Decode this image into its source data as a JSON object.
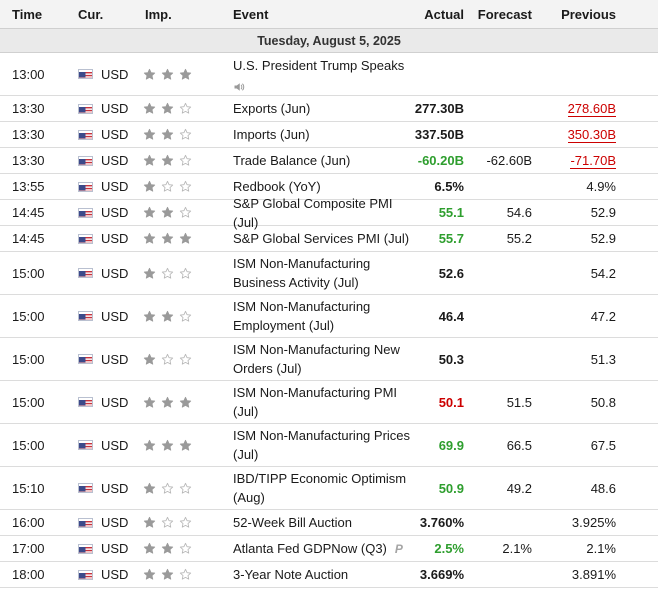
{
  "columns": {
    "time": "Time",
    "currency": "Cur.",
    "importance": "Imp.",
    "event": "Event",
    "actual": "Actual",
    "forecast": "Forecast",
    "previous": "Previous"
  },
  "date_label": "Tuesday, August 5, 2025",
  "colors": {
    "positive": "#2e9e2e",
    "negative": "#cc0000",
    "star_filled": "#9a9a9a",
    "star_empty": "#ffffff"
  },
  "events": [
    {
      "time": "13:00",
      "currency": "USD",
      "importance": 3,
      "event": "U.S. President Trump Speaks",
      "speech_icon": "speaker-icon",
      "actual": "",
      "actual_color": "neutral",
      "forecast": "",
      "previous": "",
      "previous_style": "normal"
    },
    {
      "time": "13:30",
      "currency": "USD",
      "importance": 2,
      "event": "Exports (Jun)",
      "actual": "277.30B",
      "actual_color": "neutral",
      "forecast": "",
      "previous": "278.60B",
      "previous_style": "revised"
    },
    {
      "time": "13:30",
      "currency": "USD",
      "importance": 2,
      "event": "Imports (Jun)",
      "actual": "337.50B",
      "actual_color": "neutral",
      "forecast": "",
      "previous": "350.30B",
      "previous_style": "revised"
    },
    {
      "time": "13:30",
      "currency": "USD",
      "importance": 2,
      "event": "Trade Balance (Jun)",
      "actual": "-60.20B",
      "actual_color": "positive",
      "forecast": "-62.60B",
      "previous": "-71.70B",
      "previous_style": "revised"
    },
    {
      "time": "13:55",
      "currency": "USD",
      "importance": 1,
      "event": "Redbook (YoY)",
      "actual": "6.5%",
      "actual_color": "neutral",
      "forecast": "",
      "previous": "4.9%",
      "previous_style": "normal"
    },
    {
      "time": "14:45",
      "currency": "USD",
      "importance": 2,
      "event": "S&P Global Composite PMI (Jul)",
      "actual": "55.1",
      "actual_color": "positive",
      "forecast": "54.6",
      "previous": "52.9",
      "previous_style": "normal"
    },
    {
      "time": "14:45",
      "currency": "USD",
      "importance": 3,
      "event": "S&P Global Services PMI (Jul)",
      "actual": "55.7",
      "actual_color": "positive",
      "forecast": "55.2",
      "previous": "52.9",
      "previous_style": "normal"
    },
    {
      "time": "15:00",
      "currency": "USD",
      "importance": 1,
      "event_lines": [
        "ISM Non-Manufacturing",
        "Business Activity (Jul)"
      ],
      "actual": "52.6",
      "actual_color": "neutral",
      "forecast": "",
      "previous": "54.2",
      "previous_style": "normal"
    },
    {
      "time": "15:00",
      "currency": "USD",
      "importance": 2,
      "event_lines": [
        "ISM Non-Manufacturing",
        "Employment (Jul)"
      ],
      "actual": "46.4",
      "actual_color": "neutral",
      "forecast": "",
      "previous": "47.2",
      "previous_style": "normal"
    },
    {
      "time": "15:00",
      "currency": "USD",
      "importance": 1,
      "event_lines": [
        "ISM Non-Manufacturing New",
        "Orders (Jul)"
      ],
      "actual": "50.3",
      "actual_color": "neutral",
      "forecast": "",
      "previous": "51.3",
      "previous_style": "normal"
    },
    {
      "time": "15:00",
      "currency": "USD",
      "importance": 3,
      "event_lines": [
        "ISM Non-Manufacturing PMI",
        "(Jul)"
      ],
      "actual": "50.1",
      "actual_color": "negative",
      "forecast": "51.5",
      "previous": "50.8",
      "previous_style": "normal"
    },
    {
      "time": "15:00",
      "currency": "USD",
      "importance": 3,
      "event_lines": [
        "ISM Non-Manufacturing Prices",
        "(Jul)"
      ],
      "actual": "69.9",
      "actual_color": "positive",
      "forecast": "66.5",
      "previous": "67.5",
      "previous_style": "normal"
    },
    {
      "time": "15:10",
      "currency": "USD",
      "importance": 1,
      "event_lines": [
        "IBD/TIPP Economic Optimism",
        "(Aug)"
      ],
      "actual": "50.9",
      "actual_color": "positive",
      "forecast": "49.2",
      "previous": "48.6",
      "previous_style": "normal"
    },
    {
      "time": "16:00",
      "currency": "USD",
      "importance": 1,
      "event": "52-Week Bill Auction",
      "actual": "3.760%",
      "actual_color": "neutral",
      "forecast": "",
      "previous": "3.925%",
      "previous_style": "normal"
    },
    {
      "time": "17:00",
      "currency": "USD",
      "importance": 2,
      "event": "Atlanta Fed GDPNow (Q3)",
      "preliminary_mark": "P",
      "actual": "2.5%",
      "actual_color": "positive",
      "forecast": "2.1%",
      "previous": "2.1%",
      "previous_style": "normal"
    },
    {
      "time": "18:00",
      "currency": "USD",
      "importance": 2,
      "event": "3-Year Note Auction",
      "actual": "3.669%",
      "actual_color": "neutral",
      "forecast": "",
      "previous": "3.891%",
      "previous_style": "normal"
    }
  ]
}
